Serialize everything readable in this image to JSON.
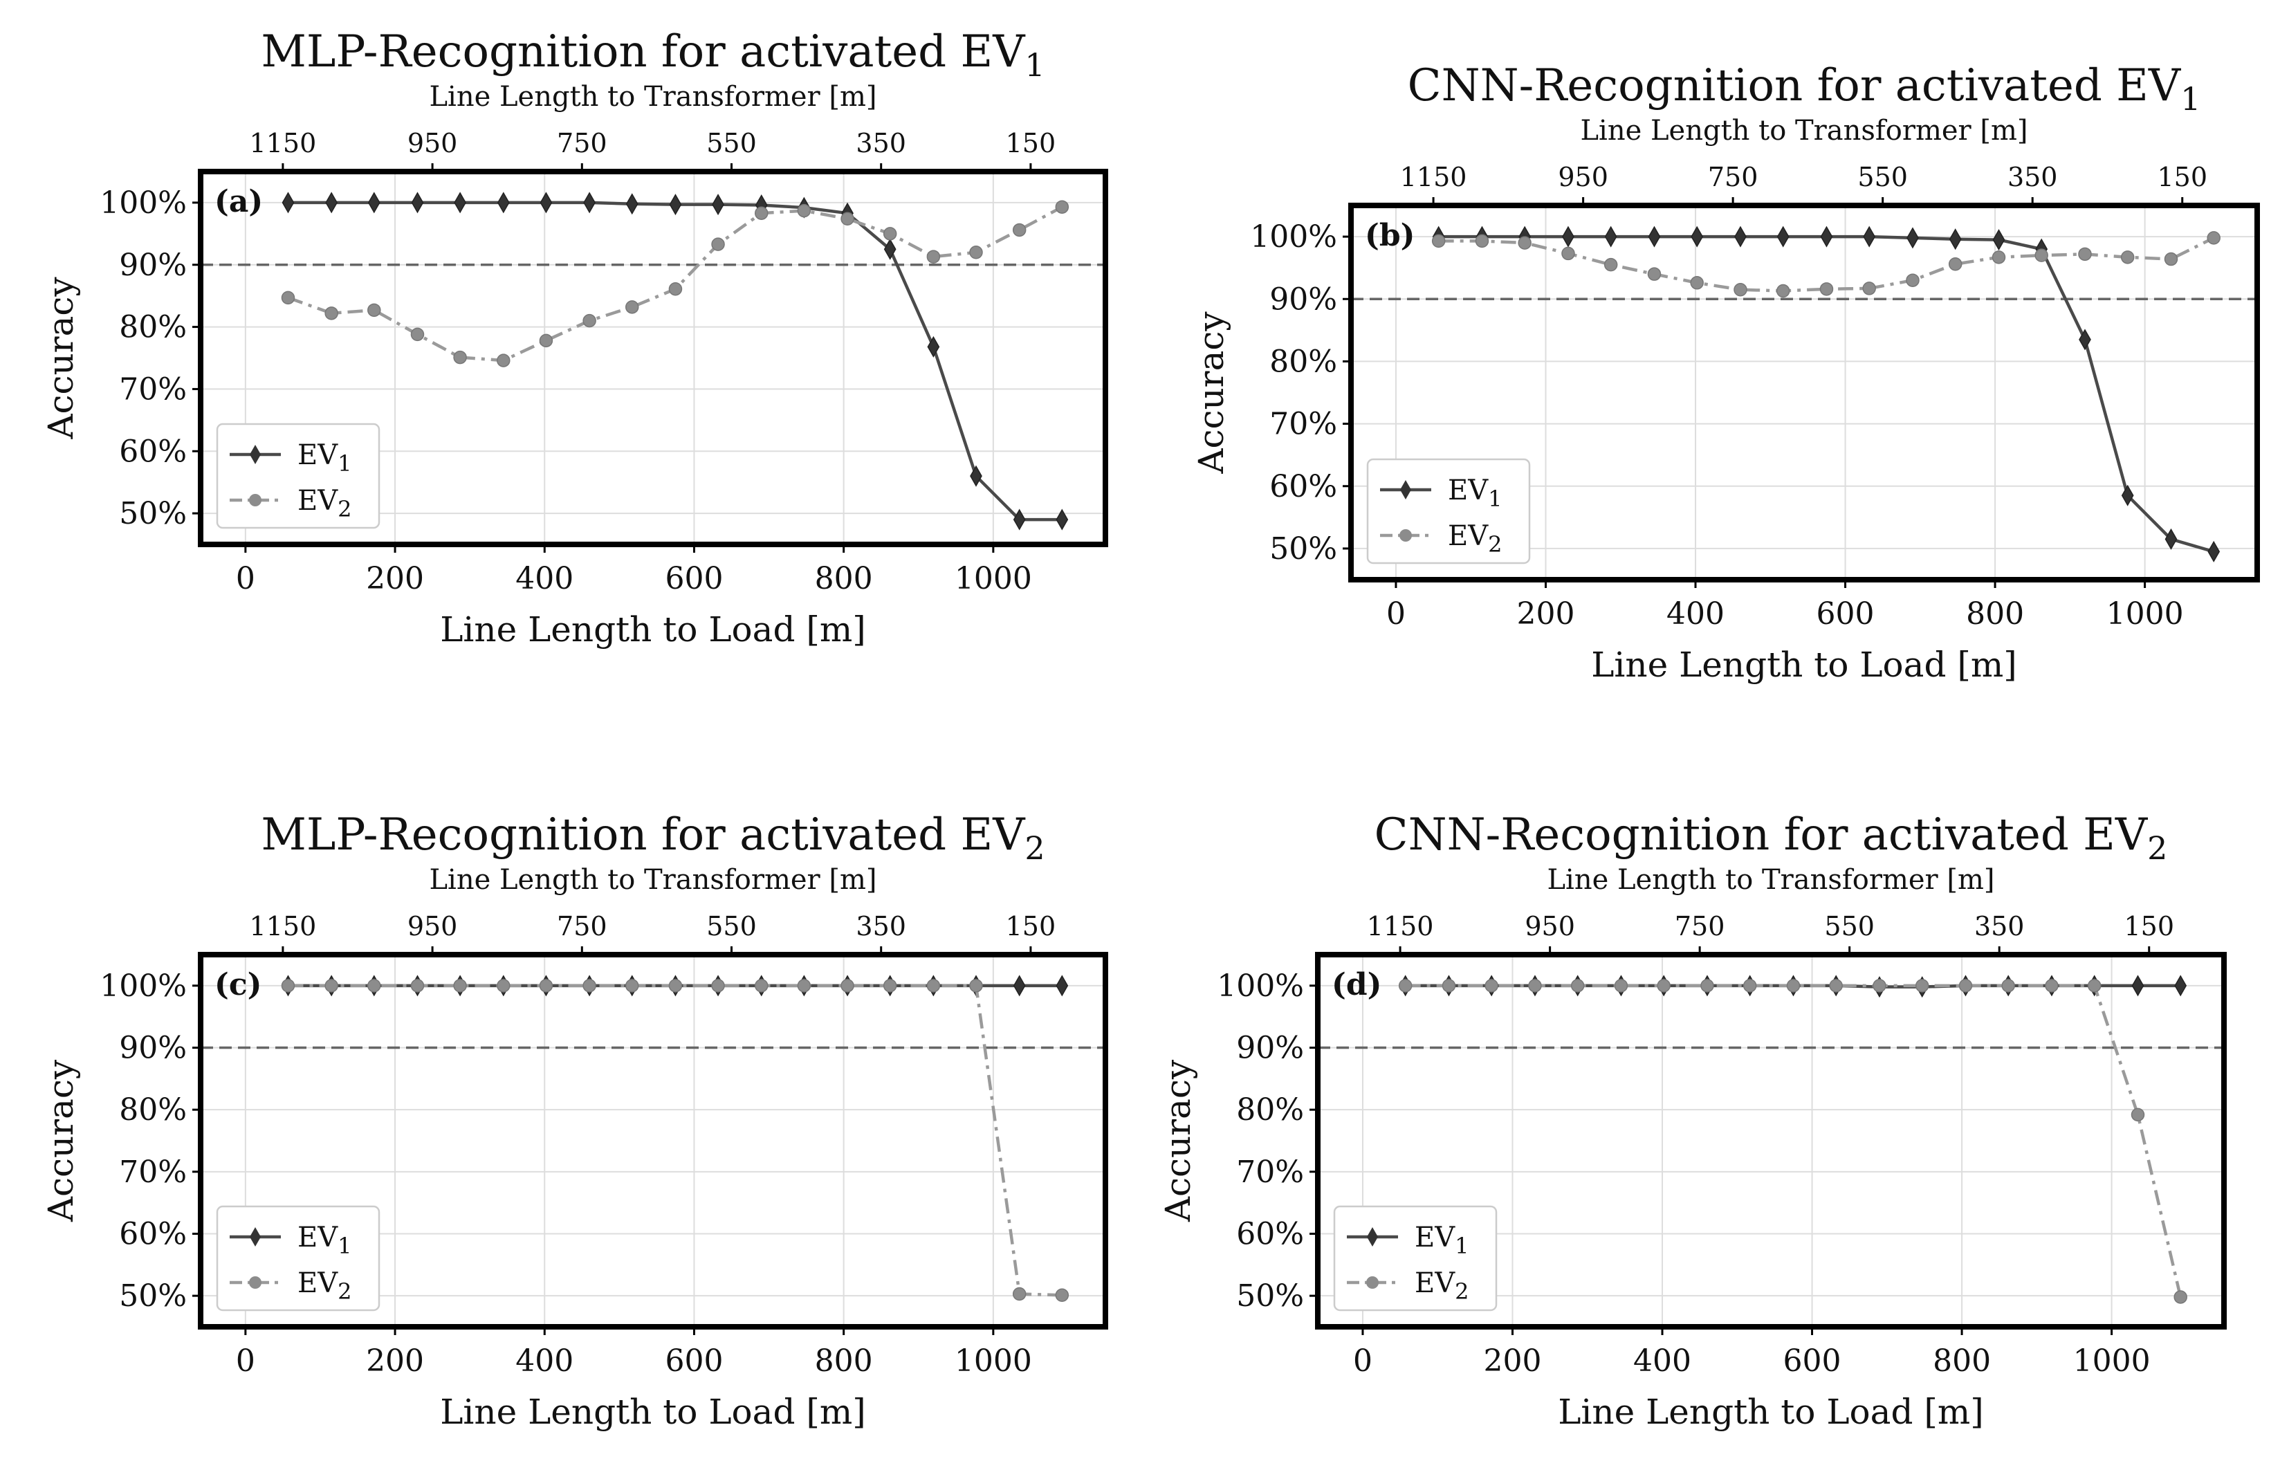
{
  "chart_data": [
    {
      "type": "line",
      "panel": "(a)",
      "title": "MLP-Recognition for activated EV",
      "title_sub": "1",
      "xlabel": "Line Length to Load [m]",
      "ylabel": "Accuracy",
      "top_xlabel": "Line Length to Transformer [m]",
      "xlim": [
        -60,
        1150
      ],
      "ylim": [
        45,
        105
      ],
      "xticks": [
        0,
        200,
        400,
        600,
        800,
        1000
      ],
      "xtick_labels": [
        "0",
        "200",
        "400",
        "600",
        "800",
        "1000"
      ],
      "yticks": [
        50,
        60,
        70,
        80,
        90,
        100
      ],
      "ytick_labels": [
        "50%",
        "60%",
        "70%",
        "80%",
        "90%",
        "100%"
      ],
      "top_ticks": [
        1150,
        950,
        750,
        550,
        350,
        150
      ],
      "top_tick_labels": [
        "1150",
        "950",
        "750",
        "550",
        "350",
        "150"
      ],
      "threshold": 90,
      "legend_position": "lower-left",
      "x": [
        57,
        115,
        172,
        230,
        287,
        345,
        402,
        460,
        517,
        575,
        632,
        690,
        747,
        805,
        862,
        920,
        977,
        1035,
        1092
      ],
      "series": [
        {
          "name": "EV",
          "sub": "1",
          "marker": "diamond",
          "style": "solid",
          "color": "#4a4a4a",
          "values": [
            100,
            100,
            100,
            100,
            100,
            100,
            100,
            100,
            99.8,
            99.7,
            99.7,
            99.6,
            99.2,
            98.3,
            92.5,
            76.8,
            56,
            49,
            49
          ]
        },
        {
          "name": "EV",
          "sub": "2",
          "marker": "circle",
          "style": "dashdot",
          "color": "#9a9a9a",
          "values": [
            84.7,
            82.2,
            82.7,
            78.8,
            75.1,
            74.6,
            77.8,
            81,
            83.2,
            86.1,
            93.3,
            98.3,
            98.7,
            97.4,
            95,
            91.3,
            92,
            95.6,
            99.3
          ]
        }
      ]
    },
    {
      "type": "line",
      "panel": "(b)",
      "title": "CNN-Recognition for activated EV",
      "title_sub": "1",
      "xlabel": "Line Length to Load [m]",
      "ylabel": "Accuracy",
      "top_xlabel": "Line Length to Transformer [m]",
      "xlim": [
        -60,
        1150
      ],
      "ylim": [
        45,
        105
      ],
      "xticks": [
        0,
        200,
        400,
        600,
        800,
        1000
      ],
      "xtick_labels": [
        "0",
        "200",
        "400",
        "600",
        "800",
        "1000"
      ],
      "yticks": [
        50,
        60,
        70,
        80,
        90,
        100
      ],
      "ytick_labels": [
        "50%",
        "60%",
        "70%",
        "80%",
        "90%",
        "100%"
      ],
      "top_ticks": [
        1150,
        950,
        750,
        550,
        350,
        150
      ],
      "top_tick_labels": [
        "1150",
        "950",
        "750",
        "550",
        "350",
        "150"
      ],
      "threshold": 90,
      "legend_position": "lower-left",
      "x": [
        57,
        115,
        172,
        230,
        287,
        345,
        402,
        460,
        517,
        575,
        632,
        690,
        747,
        805,
        862,
        920,
        977,
        1035,
        1092
      ],
      "series": [
        {
          "name": "EV",
          "sub": "1",
          "marker": "diamond",
          "style": "solid",
          "color": "#4a4a4a",
          "values": [
            100,
            100,
            100,
            100,
            100,
            100,
            100,
            100,
            100,
            100,
            100,
            99.8,
            99.6,
            99.5,
            98,
            83.5,
            58.5,
            51.5,
            49.5
          ]
        },
        {
          "name": "EV",
          "sub": "2",
          "marker": "circle",
          "style": "dashdot",
          "color": "#9a9a9a",
          "values": [
            99.3,
            99.3,
            99,
            97.3,
            95.5,
            94,
            92.6,
            91.5,
            91.3,
            91.6,
            91.7,
            93,
            95.6,
            96.7,
            97,
            97.2,
            96.7,
            96.4,
            99.8
          ]
        }
      ]
    },
    {
      "type": "line",
      "panel": "(c)",
      "title": "MLP-Recognition for activated EV",
      "title_sub": "2",
      "xlabel": "Line Length to Load [m]",
      "ylabel": "Accuracy",
      "top_xlabel": "Line Length to Transformer [m]",
      "xlim": [
        -60,
        1150
      ],
      "ylim": [
        45,
        105
      ],
      "xticks": [
        0,
        200,
        400,
        600,
        800,
        1000
      ],
      "xtick_labels": [
        "0",
        "200",
        "400",
        "600",
        "800",
        "1000"
      ],
      "yticks": [
        50,
        60,
        70,
        80,
        90,
        100
      ],
      "ytick_labels": [
        "50%",
        "60%",
        "70%",
        "80%",
        "90%",
        "100%"
      ],
      "top_ticks": [
        1150,
        950,
        750,
        550,
        350,
        150
      ],
      "top_tick_labels": [
        "1150",
        "950",
        "750",
        "550",
        "350",
        "150"
      ],
      "threshold": 90,
      "legend_position": "lower-left",
      "x": [
        57,
        115,
        172,
        230,
        287,
        345,
        402,
        460,
        517,
        575,
        632,
        690,
        747,
        805,
        862,
        920,
        977,
        1035,
        1092
      ],
      "series": [
        {
          "name": "EV",
          "sub": "1",
          "marker": "diamond",
          "style": "solid",
          "color": "#4a4a4a",
          "values": [
            100,
            100,
            100,
            100,
            100,
            100,
            100,
            100,
            100,
            100,
            100,
            100,
            100,
            100,
            100,
            100,
            100,
            100,
            100
          ]
        },
        {
          "name": "EV",
          "sub": "2",
          "marker": "circle",
          "style": "dashdot",
          "color": "#9a9a9a",
          "values": [
            100,
            100,
            100,
            100,
            100,
            100,
            100,
            100,
            100,
            100,
            100,
            100,
            100,
            100,
            100,
            100,
            100,
            50.3,
            50.1
          ]
        }
      ]
    },
    {
      "type": "line",
      "panel": "(d)",
      "title": "CNN-Recognition for activated EV",
      "title_sub": "2",
      "xlabel": "Line Length to Load [m]",
      "ylabel": "Accuracy",
      "top_xlabel": "Line Length to Transformer [m]",
      "xlim": [
        -60,
        1150
      ],
      "ylim": [
        45,
        105
      ],
      "xticks": [
        0,
        200,
        400,
        600,
        800,
        1000
      ],
      "xtick_labels": [
        "0",
        "200",
        "400",
        "600",
        "800",
        "1000"
      ],
      "yticks": [
        50,
        60,
        70,
        80,
        90,
        100
      ],
      "ytick_labels": [
        "50%",
        "60%",
        "70%",
        "80%",
        "90%",
        "100%"
      ],
      "top_ticks": [
        1150,
        950,
        750,
        550,
        350,
        150
      ],
      "top_tick_labels": [
        "1150",
        "950",
        "750",
        "550",
        "350",
        "150"
      ],
      "threshold": 90,
      "legend_position": "lower-left",
      "x": [
        57,
        115,
        172,
        230,
        287,
        345,
        402,
        460,
        517,
        575,
        632,
        690,
        747,
        805,
        862,
        920,
        977,
        1035,
        1092
      ],
      "series": [
        {
          "name": "EV",
          "sub": "1",
          "marker": "diamond",
          "style": "solid",
          "color": "#4a4a4a",
          "values": [
            100,
            100,
            100,
            100,
            100,
            100,
            100,
            100,
            100,
            100,
            100,
            99.8,
            99.8,
            100,
            100,
            100,
            100,
            100,
            100
          ]
        },
        {
          "name": "EV",
          "sub": "2",
          "marker": "circle",
          "style": "dashdot",
          "color": "#9a9a9a",
          "values": [
            100,
            100,
            100,
            100,
            100,
            100,
            100,
            100,
            100,
            100,
            100,
            100,
            100,
            100,
            100,
            100,
            100,
            79.2,
            49.8
          ]
        }
      ]
    }
  ]
}
